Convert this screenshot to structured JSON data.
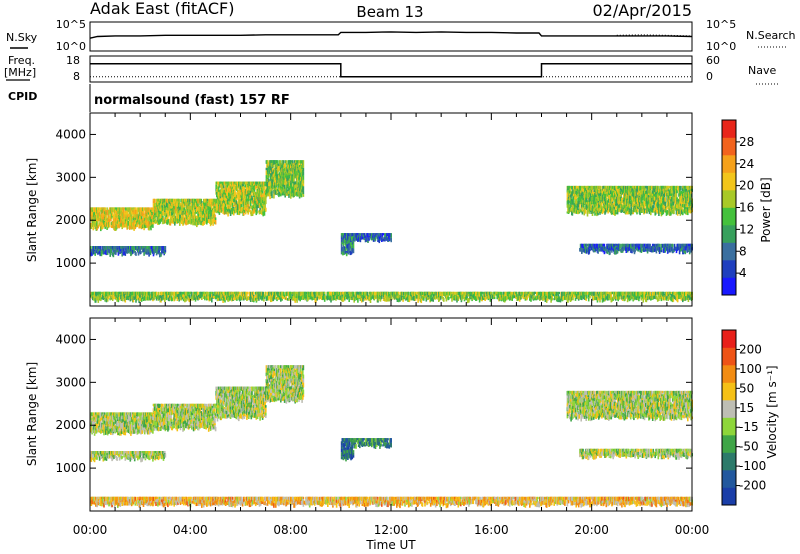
{
  "header": {
    "radar": "Adak East (fitACF)",
    "beam": "Beam 13",
    "date": "02/Apr/2015"
  },
  "chart_data": [
    {
      "type": "line",
      "panel": "noise",
      "left_label": "N.Sky",
      "right_label": "N.Search",
      "left_ticks": [
        "10^5",
        "10^0"
      ],
      "right_ticks": [
        "10^5",
        "10^0"
      ],
      "log_scale": true,
      "series": [
        {
          "name": "N.Sky",
          "style": "solid",
          "x": [
            0,
            0.3,
            1,
            2,
            3,
            4,
            5,
            6,
            7,
            8,
            9,
            9.9,
            10,
            11,
            12,
            13,
            14,
            15,
            16,
            17,
            17.9,
            18,
            19,
            20,
            21,
            22,
            23,
            24
          ],
          "y": [
            2.2,
            2.5,
            2.6,
            2.6,
            2.7,
            2.7,
            2.7,
            2.7,
            2.8,
            2.8,
            2.8,
            2.8,
            3.2,
            3.2,
            3.3,
            3.2,
            3.3,
            3.2,
            3.2,
            3.1,
            3.1,
            2.6,
            2.6,
            2.6,
            2.6,
            2.6,
            2.6,
            2.5
          ]
        },
        {
          "name": "N.Search",
          "style": "dotted",
          "x": [
            21,
            22,
            23,
            24
          ],
          "y": [
            2.7,
            2.8,
            2.7,
            2.6
          ]
        }
      ]
    },
    {
      "type": "line",
      "panel": "frequency",
      "left_label": "Freq.",
      "left_unit": "[MHz]",
      "right_label": "Nave",
      "left_ticks": [
        "18",
        "8"
      ],
      "right_ticks": [
        "60",
        "0"
      ],
      "series": [
        {
          "name": "Freq.",
          "style": "solid",
          "x": [
            0,
            10,
            10,
            18,
            18,
            24
          ],
          "y": [
            15,
            15,
            10,
            10,
            15,
            15
          ]
        },
        {
          "name": "Nave",
          "style": "dotted",
          "x": [
            0,
            24
          ],
          "y": [
            10,
            10
          ]
        }
      ]
    },
    {
      "type": "table",
      "panel": "cpid",
      "label": "CPID",
      "text": "normalsound (fast) 157 RF"
    },
    {
      "type": "heatmap",
      "panel": "power",
      "ylabel": "Slant Range [km]",
      "xlim": [
        0,
        24
      ],
      "ylim": [
        0,
        4500
      ],
      "y_ticks": [
        1000,
        2000,
        3000,
        4000
      ],
      "colorbar": {
        "label": "Power [dB]",
        "ticks": [
          "4",
          "8",
          "12",
          "16",
          "20",
          "24",
          "28"
        ],
        "colors": [
          "#1919ff",
          "#1f3fbf",
          "#3a6f9f",
          "#37a05c",
          "#44c13c",
          "#a8c928",
          "#f2c51b",
          "#f5a11b",
          "#f2631d",
          "#e8261a"
        ]
      },
      "regions": [
        {
          "t0": 0.0,
          "t1": 2.5,
          "r0": 1850,
          "r1": 2300,
          "level": 0.62
        },
        {
          "t0": 2.5,
          "t1": 5.0,
          "r0": 1950,
          "r1": 2500,
          "level": 0.55
        },
        {
          "t0": 5.0,
          "t1": 7.0,
          "r0": 2200,
          "r1": 2900,
          "level": 0.55
        },
        {
          "t0": 7.0,
          "t1": 8.5,
          "r0": 2600,
          "r1": 3400,
          "level": 0.48
        },
        {
          "t0": 0.0,
          "t1": 3.0,
          "r0": 1250,
          "r1": 1400,
          "level": 0.25
        },
        {
          "t0": 10.0,
          "t1": 10.5,
          "r0": 1250,
          "r1": 1700,
          "level": 0.28
        },
        {
          "t0": 10.5,
          "t1": 12.0,
          "r0": 1550,
          "r1": 1700,
          "level": 0.2
        },
        {
          "t0": 19.0,
          "t1": 24.0,
          "r0": 2200,
          "r1": 2800,
          "level": 0.5
        },
        {
          "t0": 19.5,
          "t1": 24.0,
          "r0": 1300,
          "r1": 1450,
          "level": 0.22
        },
        {
          "t0": 0.0,
          "t1": 24.0,
          "r0": 180,
          "r1": 330,
          "level": 0.5
        }
      ]
    },
    {
      "type": "heatmap",
      "panel": "velocity",
      "xlabel": "Time UT",
      "ylabel": "Slant Range [km]",
      "xlim": [
        0,
        24
      ],
      "ylim": [
        0,
        4500
      ],
      "x_ticks": [
        "00:00",
        "04:00",
        "08:00",
        "12:00",
        "16:00",
        "20:00",
        "00:00"
      ],
      "y_ticks": [
        1000,
        2000,
        3000,
        4000
      ],
      "colorbar": {
        "label": "Velocity [m s⁻¹]",
        "ticks": [
          "200",
          "100",
          "50",
          "15",
          "-15",
          "-50",
          "-100",
          "-200"
        ],
        "colors": [
          "#1a3ea8",
          "#22589e",
          "#2c7a6a",
          "#3fa547",
          "#8ed63a",
          "#bebeb4",
          "#f5c016",
          "#f28c12",
          "#ee5316",
          "#e8201a"
        ]
      },
      "regions": [
        {
          "t0": 0.0,
          "t1": 2.5,
          "r0": 1850,
          "r1": 2300,
          "level": 0.5
        },
        {
          "t0": 2.5,
          "t1": 5.0,
          "r0": 1950,
          "r1": 2500,
          "level": 0.5
        },
        {
          "t0": 5.0,
          "t1": 7.0,
          "r0": 2200,
          "r1": 2900,
          "level": 0.5
        },
        {
          "t0": 7.0,
          "t1": 8.5,
          "r0": 2600,
          "r1": 3400,
          "level": 0.5
        },
        {
          "t0": 0.0,
          "t1": 3.0,
          "r0": 1250,
          "r1": 1400,
          "level": 0.5
        },
        {
          "t0": 10.0,
          "t1": 10.5,
          "r0": 1250,
          "r1": 1700,
          "level": 0.2
        },
        {
          "t0": 10.5,
          "t1": 12.0,
          "r0": 1550,
          "r1": 1700,
          "level": 0.3
        },
        {
          "t0": 19.0,
          "t1": 24.0,
          "r0": 2200,
          "r1": 2800,
          "level": 0.5
        },
        {
          "t0": 19.5,
          "t1": 24.0,
          "r0": 1300,
          "r1": 1450,
          "level": 0.5
        },
        {
          "t0": 0.0,
          "t1": 24.0,
          "r0": 180,
          "r1": 330,
          "level": 0.65
        }
      ]
    }
  ]
}
